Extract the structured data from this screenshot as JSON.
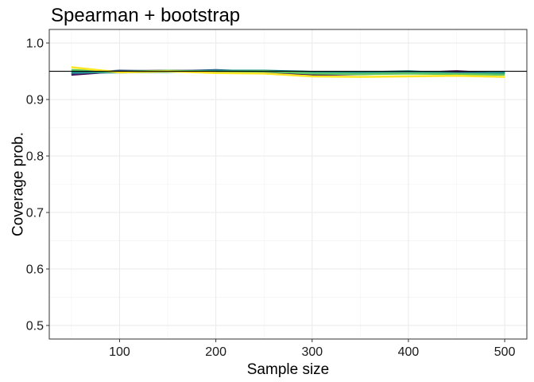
{
  "chart_data": {
    "type": "line",
    "title": "Spearman + bootstrap",
    "xlabel": "Sample size",
    "ylabel": "Coverage prob.",
    "xlim": [
      27,
      523
    ],
    "ylim": [
      0.476,
      1.024
    ],
    "x_ticks": [
      100,
      200,
      300,
      400,
      500
    ],
    "x_tick_labels": [
      "100",
      "200",
      "300",
      "400",
      "500"
    ],
    "y_ticks": [
      0.5,
      0.6,
      0.7,
      0.8,
      0.9,
      1.0
    ],
    "y_tick_labels": [
      "0.5",
      "0.6",
      "0.7",
      "0.8",
      "0.9",
      "1.0"
    ],
    "grid": true,
    "reference_line": {
      "y": 0.95,
      "color": "#000000"
    },
    "x": [
      50,
      100,
      150,
      200,
      250,
      300,
      350,
      400,
      450,
      500
    ],
    "series": [
      {
        "color": "#440154",
        "values": [
          0.944,
          0.95,
          0.951,
          0.95,
          0.947,
          0.944,
          0.945,
          0.947,
          0.95,
          0.946
        ]
      },
      {
        "color": "#3B528B",
        "values": [
          0.946,
          0.951,
          0.95,
          0.952,
          0.949,
          0.947,
          0.946,
          0.948,
          0.947,
          0.947
        ]
      },
      {
        "color": "#21908C",
        "values": [
          0.948,
          0.948,
          0.949,
          0.951,
          0.951,
          0.949,
          0.948,
          0.95,
          0.946,
          0.948
        ]
      },
      {
        "color": "#5DC863",
        "values": [
          0.952,
          0.949,
          0.951,
          0.949,
          0.95,
          0.946,
          0.945,
          0.946,
          0.945,
          0.944
        ]
      },
      {
        "color": "#FDE725",
        "values": [
          0.957,
          0.948,
          0.95,
          0.947,
          0.946,
          0.941,
          0.94,
          0.941,
          0.942,
          0.94
        ]
      }
    ]
  }
}
